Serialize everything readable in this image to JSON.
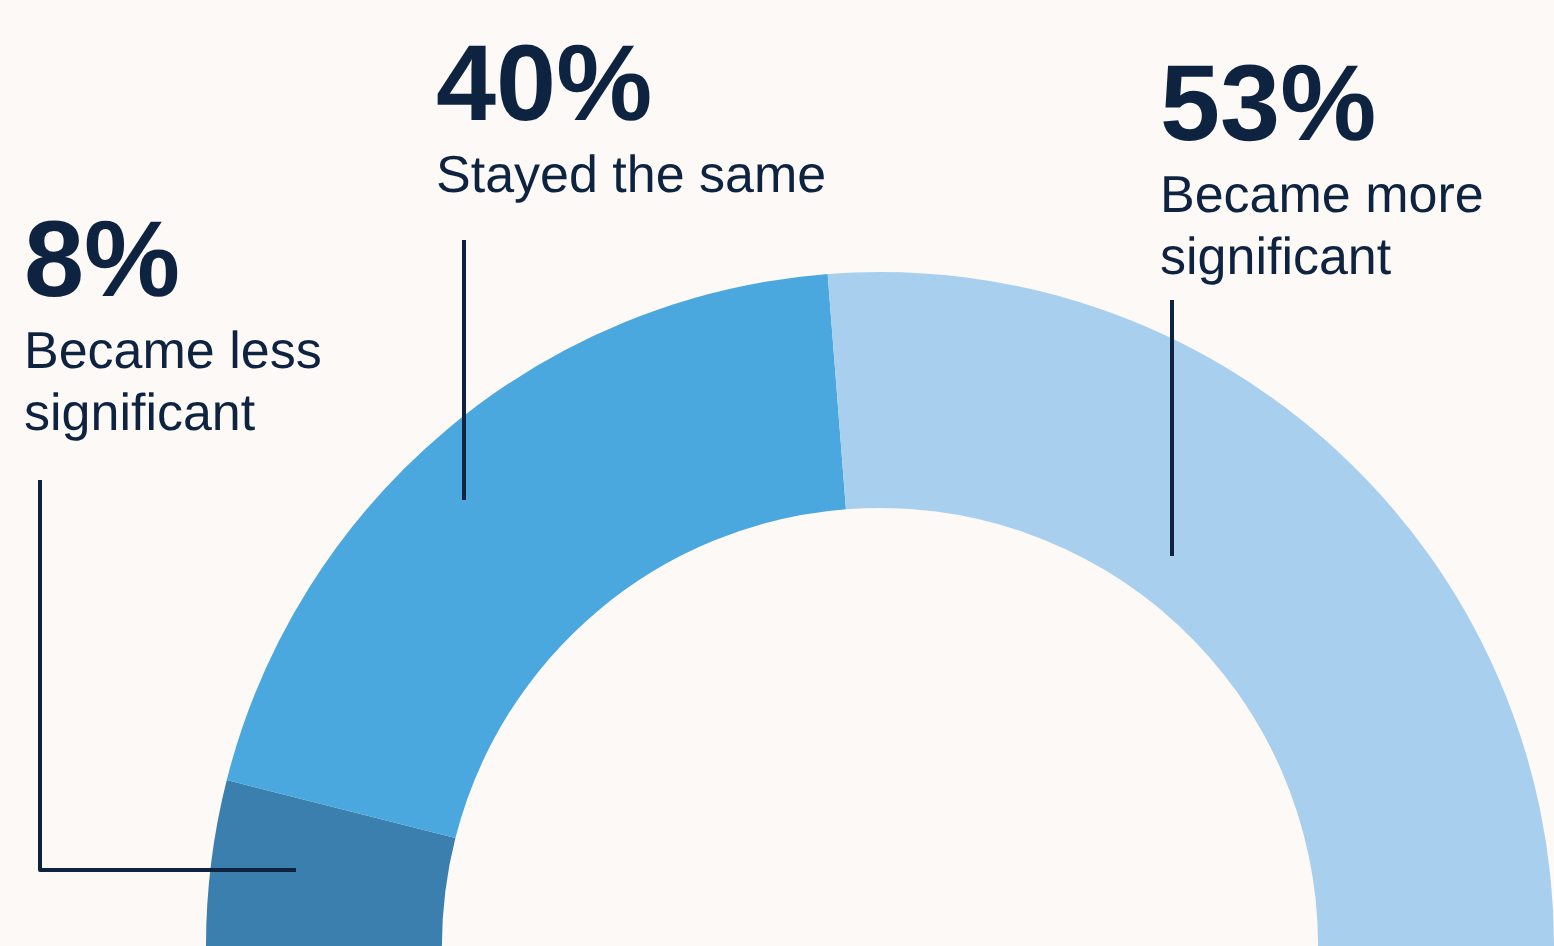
{
  "chart_data": {
    "type": "donut",
    "categories": [
      "Became less significant",
      "Stayed the same",
      "Became more significant"
    ],
    "values": [
      8,
      40,
      53
    ],
    "value_labels": [
      "8%",
      "40%",
      "53%"
    ],
    "colors": [
      "#3a7fae",
      "#4aa8de",
      "#a8cfee"
    ],
    "legend": false
  }
}
